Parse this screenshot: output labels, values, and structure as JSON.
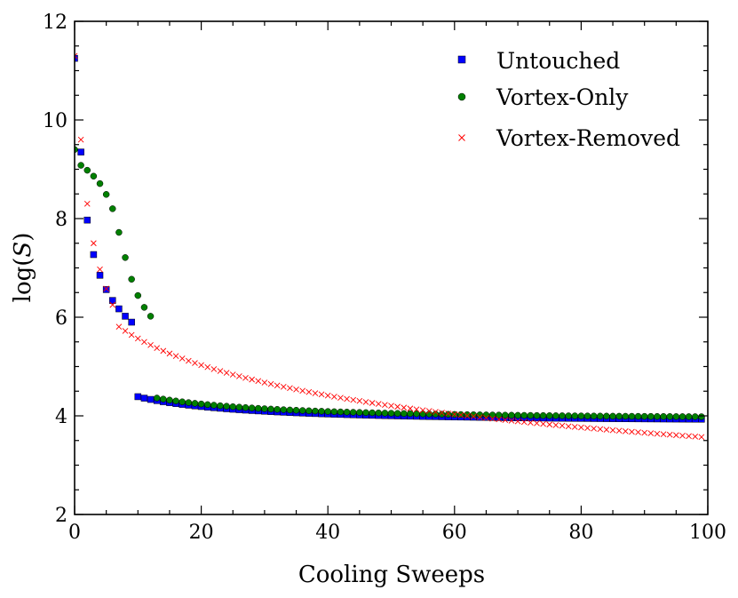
{
  "chart_data": {
    "type": "scatter",
    "title": "",
    "xlabel": "Cooling Sweeps",
    "ylabel_prefix": "log(",
    "ylabel_var": "S",
    "ylabel_suffix": ")",
    "xlim": [
      0,
      100
    ],
    "ylim": [
      2,
      12
    ],
    "xticks": [
      0,
      20,
      40,
      60,
      80,
      100
    ],
    "yticks": [
      2,
      4,
      6,
      8,
      10,
      12
    ],
    "grid": false,
    "legend_position": "top-right",
    "series": [
      {
        "name": "Untouched",
        "marker": "square",
        "color": "#0000ff",
        "curve": {
          "y0": 11.25,
          "early": [
            9.35,
            7.97,
            7.27,
            6.85,
            6.56,
            6.34,
            6.17,
            6.02,
            5.9
          ],
          "A": 3.9,
          "B": 1.73,
          "q": 0.4
        }
      },
      {
        "name": "Vortex-Only",
        "marker": "circle",
        "color": "#008000",
        "curve": {
          "y0": 9.4,
          "early": [
            9.08,
            8.98,
            8.86,
            8.71,
            8.49,
            8.2,
            7.72,
            7.21,
            6.77,
            6.44,
            6.2,
            6.02
          ],
          "A": 3.95,
          "B": 1.74,
          "q": 0.4
        }
      },
      {
        "name": "Vortex-Removed",
        "marker": "cross",
        "color": "#ff0000",
        "curve": {
          "y0": 11.3,
          "early": [
            9.6,
            8.3,
            7.5,
            6.97,
            6.58,
            6.25
          ],
          "A": 2.24,
          "B": 5.1,
          "q": 0.135
        }
      }
    ]
  }
}
